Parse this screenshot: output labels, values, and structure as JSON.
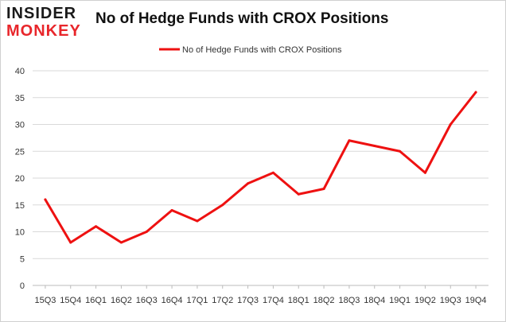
{
  "header": {
    "logo_line1": "INSIDER",
    "logo_line2": "MONKEY",
    "title": "No of Hedge Funds with CROX Positions"
  },
  "colors": {
    "series": "#ee1111",
    "grid": "#d9d9d9",
    "logo_dark": "#1a1a1a",
    "logo_red": "#e8262b"
  },
  "chart_data": {
    "type": "line",
    "title": "No of Hedge Funds with CROX Positions",
    "xlabel": "",
    "ylabel": "",
    "categories": [
      "15Q3",
      "15Q4",
      "16Q1",
      "16Q2",
      "16Q3",
      "16Q4",
      "17Q1",
      "17Q2",
      "17Q3",
      "17Q4",
      "18Q1",
      "18Q2",
      "18Q3",
      "18Q4",
      "19Q1",
      "19Q2",
      "19Q3",
      "19Q4"
    ],
    "series": [
      {
        "name": "No of Hedge Funds with CROX Positions",
        "values": [
          16,
          8,
          11,
          8,
          10,
          14,
          12,
          15,
          19,
          21,
          17,
          18,
          27,
          26,
          25,
          21,
          30,
          36
        ]
      }
    ],
    "ylim": [
      0,
      40
    ],
    "yticks": [
      0,
      5,
      10,
      15,
      20,
      25,
      30,
      35,
      40
    ],
    "grid": true,
    "legend_position": "top-center"
  }
}
